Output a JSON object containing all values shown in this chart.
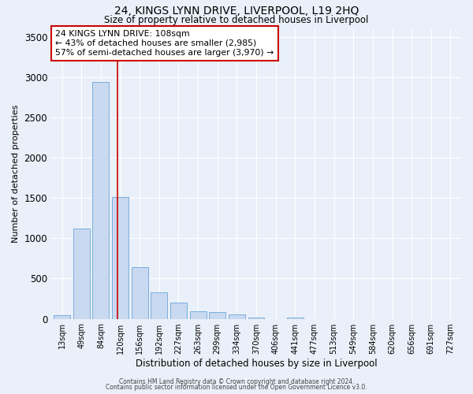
{
  "title1": "24, KINGS LYNN DRIVE, LIVERPOOL, L19 2HQ",
  "title2": "Size of property relative to detached houses in Liverpool",
  "xlabel": "Distribution of detached houses by size in Liverpool",
  "ylabel": "Number of detached properties",
  "bar_labels": [
    "13sqm",
    "49sqm",
    "84sqm",
    "120sqm",
    "156sqm",
    "192sqm",
    "227sqm",
    "263sqm",
    "299sqm",
    "334sqm",
    "370sqm",
    "406sqm",
    "441sqm",
    "477sqm",
    "513sqm",
    "549sqm",
    "584sqm",
    "620sqm",
    "656sqm",
    "691sqm",
    "727sqm"
  ],
  "bar_values": [
    40,
    1120,
    2940,
    1510,
    640,
    330,
    200,
    90,
    80,
    50,
    20,
    0,
    15,
    0,
    0,
    0,
    0,
    0,
    0,
    0,
    0
  ],
  "bar_color": "#c9d9f0",
  "bar_edge_color": "#7aaddc",
  "vline_color": "#cc0000",
  "annotation_title": "24 KINGS LYNN DRIVE: 108sqm",
  "annotation_line1": "← 43% of detached houses are smaller (2,985)",
  "annotation_line2": "57% of semi-detached houses are larger (3,970) →",
  "annotation_box_color": "#ffffff",
  "annotation_box_edge_color": "#cc0000",
  "ylim": [
    0,
    3600
  ],
  "yticks": [
    0,
    500,
    1000,
    1500,
    2000,
    2500,
    3000,
    3500
  ],
  "footer1": "Contains HM Land Registry data © Crown copyright and database right 2024.",
  "footer2": "Contains public sector information licensed under the Open Government Licence v3.0.",
  "bg_color": "#eaf0f9"
}
